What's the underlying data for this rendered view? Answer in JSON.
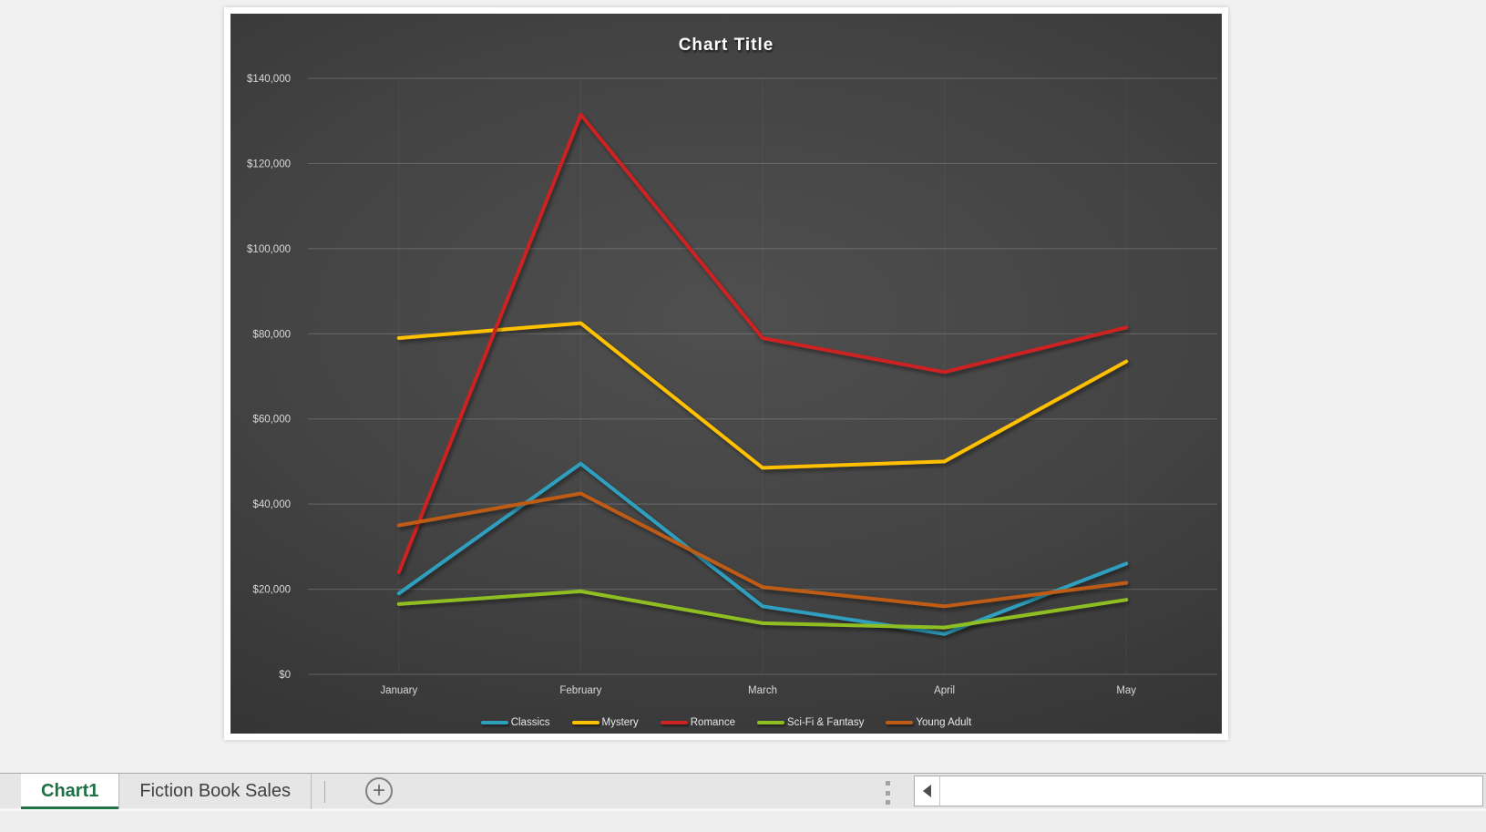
{
  "chart_data": {
    "type": "line",
    "title": "Chart Title",
    "xlabel": "",
    "ylabel": "",
    "categories": [
      "January",
      "February",
      "March",
      "April",
      "May"
    ],
    "series": [
      {
        "name": "Classics",
        "color": "#2E9FBE",
        "values": [
          19000,
          49500,
          16000,
          9500,
          26000
        ]
      },
      {
        "name": "Mystery",
        "color": "#FFC000",
        "values": [
          79000,
          82500,
          48500,
          50000,
          73500
        ]
      },
      {
        "name": "Romance",
        "color": "#CE2323",
        "values": [
          24000,
          131500,
          79000,
          71000,
          81500
        ]
      },
      {
        "name": "Sci-Fi & Fantasy",
        "color": "#8FBE21",
        "values": [
          16500,
          19500,
          12000,
          11000,
          17500
        ]
      },
      {
        "name": "Young Adult",
        "color": "#BE5C17",
        "values": [
          35000,
          42500,
          20500,
          16000,
          21500
        ]
      }
    ],
    "ylim": [
      0,
      140000
    ],
    "ytick_step": 20000,
    "ytick_labels": [
      "$140,000",
      "$120,000",
      "$100,000",
      "$80,000",
      "$60,000",
      "$40,000",
      "$20,000",
      "$0"
    ],
    "grid": true,
    "legend_position": "bottom",
    "plot_bg": "dark-gray-radial-gradient",
    "text_color": "#d9d9d9"
  },
  "sheet_tabs": {
    "tabs": [
      {
        "label": "Chart1",
        "active": true
      },
      {
        "label": "Fiction Book Sales",
        "active": false
      }
    ],
    "add_sheet_glyph": "+",
    "active_color": "#217346"
  }
}
